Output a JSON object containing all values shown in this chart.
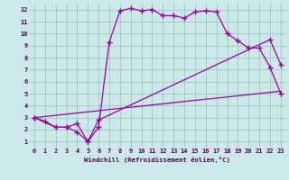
{
  "xlabel": "Windchill (Refroidissement éolien,°C)",
  "bg_color": "#cce8e8",
  "grid_color": "#99ccbb",
  "line_color": "#990099",
  "xlim": [
    -0.5,
    23.5
  ],
  "ylim": [
    0.5,
    12.5
  ],
  "xticks": [
    0,
    1,
    2,
    3,
    4,
    5,
    6,
    7,
    8,
    9,
    10,
    11,
    12,
    13,
    14,
    15,
    16,
    17,
    18,
    19,
    20,
    21,
    22,
    23
  ],
  "yticks": [
    1,
    2,
    3,
    4,
    5,
    6,
    7,
    8,
    9,
    10,
    11,
    12
  ],
  "line1_x": [
    0,
    1,
    2,
    3,
    4,
    5,
    6,
    7,
    8,
    9,
    10,
    11,
    12,
    13,
    14,
    15,
    16,
    17,
    18,
    19,
    20,
    21,
    22,
    23
  ],
  "line1_y": [
    3.0,
    2.7,
    2.2,
    2.2,
    1.8,
    1.0,
    2.2,
    9.3,
    11.9,
    12.1,
    11.9,
    12.0,
    11.5,
    11.5,
    11.3,
    11.8,
    11.9,
    11.8,
    10.0,
    9.4,
    8.8,
    8.8,
    7.2,
    5.0
  ],
  "line2_x": [
    0,
    2,
    3,
    4,
    5,
    6,
    22,
    23
  ],
  "line2_y": [
    3.0,
    2.2,
    2.2,
    2.5,
    1.0,
    2.8,
    9.5,
    7.4
  ],
  "line3_x": [
    0,
    23
  ],
  "line3_y": [
    3.0,
    5.2
  ]
}
